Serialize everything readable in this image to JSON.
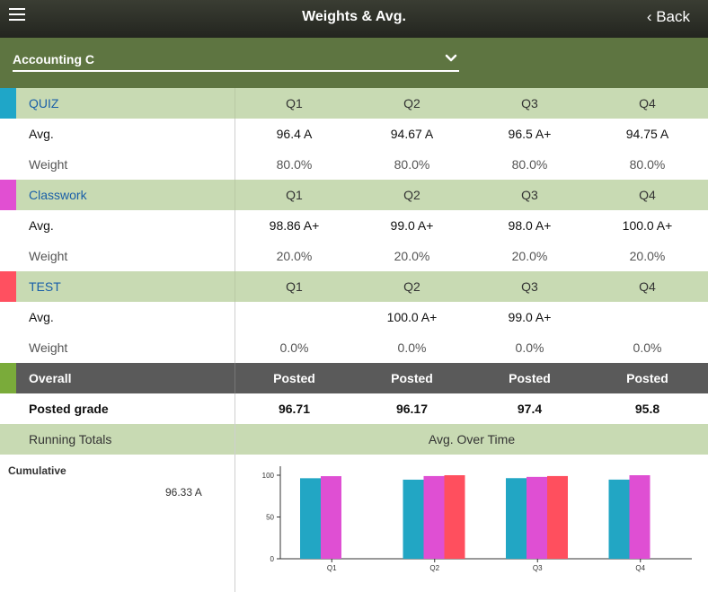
{
  "header": {
    "title": "Weights & Avg.",
    "back_label": "‹ Back"
  },
  "course_select": {
    "selected": "Accounting C"
  },
  "quarters": [
    "Q1",
    "Q2",
    "Q3",
    "Q4"
  ],
  "sections": [
    {
      "name": "QUIZ",
      "color": "#1fa6c8",
      "avg_label": "Avg.",
      "weight_label": "Weight",
      "avgs": [
        "96.4 A",
        "94.67 A",
        "96.5 A+",
        "94.75 A"
      ],
      "weights": [
        "80.0%",
        "80.0%",
        "80.0%",
        "80.0%"
      ]
    },
    {
      "name": "Classwork",
      "color": "#e14fd2",
      "avg_label": "Avg.",
      "weight_label": "Weight",
      "avgs": [
        "98.86 A+",
        "99.0 A+",
        "98.0 A+",
        "100.0 A+"
      ],
      "weights": [
        "20.0%",
        "20.0%",
        "20.0%",
        "20.0%"
      ]
    },
    {
      "name": "TEST",
      "color": "#ff5060",
      "avg_label": "Avg.",
      "weight_label": "Weight",
      "avgs": [
        "",
        "100.0 A+",
        "99.0 A+",
        ""
      ],
      "weights": [
        "0.0%",
        "0.0%",
        "0.0%",
        "0.0%"
      ]
    }
  ],
  "overall": {
    "label": "Overall",
    "color": "#7aab3a",
    "status": [
      "Posted",
      "Posted",
      "Posted",
      "Posted"
    ],
    "posted_label": "Posted grade",
    "posted": [
      "96.71",
      "96.17",
      "97.4",
      "95.8"
    ]
  },
  "running_totals": {
    "label": "Running Totals",
    "chart_title": "Avg. Over Time",
    "cumulative_label": "Cumulative",
    "cumulative_value": "96.33 A"
  },
  "chart_data": {
    "type": "bar",
    "title": "Avg. Over Time",
    "categories": [
      "Q1",
      "Q2",
      "Q3",
      "Q4"
    ],
    "yticks": [
      0,
      50,
      100
    ],
    "ylim": [
      0,
      110
    ],
    "series": [
      {
        "color": "#22a6c4",
        "values": [
          96.4,
          94.67,
          96.5,
          94.75
        ]
      },
      {
        "color": "#df4fd3",
        "values": [
          98.86,
          99.0,
          98.0,
          100.0
        ]
      },
      {
        "color": "#ff4f5e",
        "values": [
          null,
          100.0,
          99.0,
          null
        ]
      }
    ],
    "grid": false,
    "legend": "none"
  }
}
